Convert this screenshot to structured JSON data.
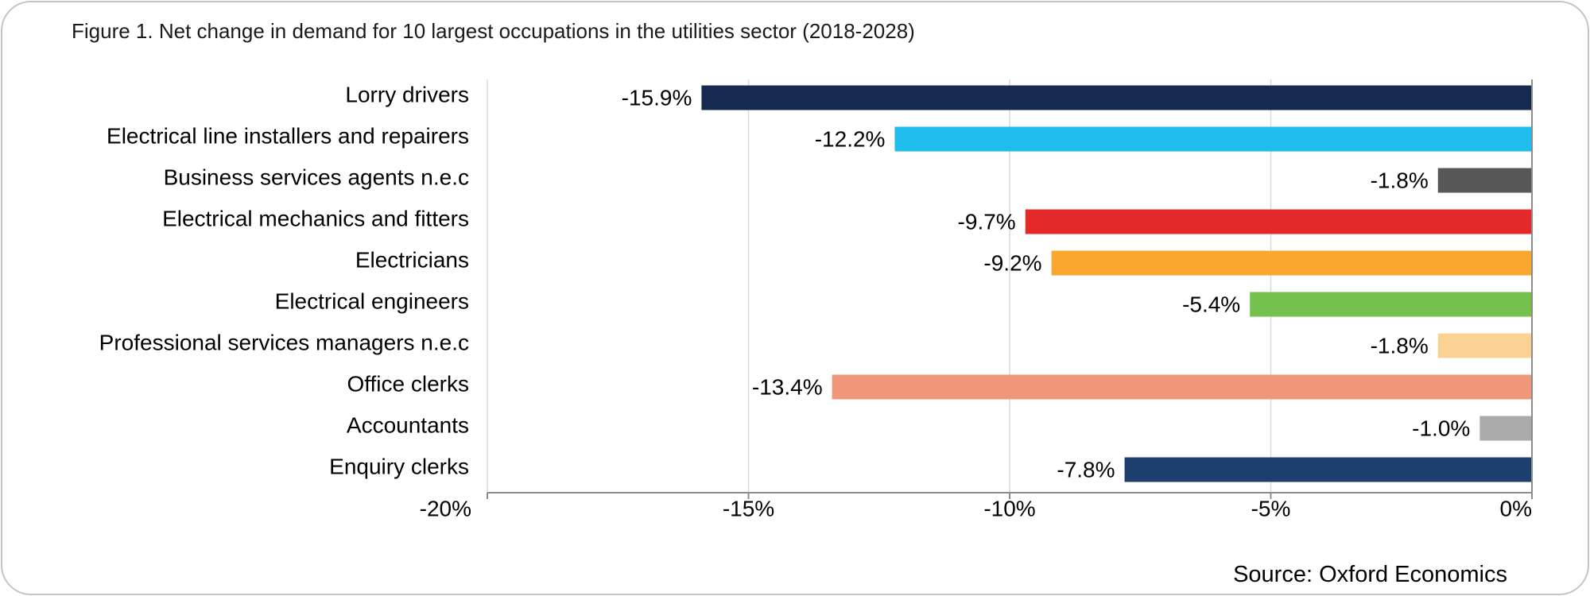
{
  "title": "Figure 1. Net change in demand for 10 largest occupations in the utilities sector (2018-2028)",
  "source": "Source: Oxford Economics",
  "chart_data": {
    "type": "bar",
    "orientation": "horizontal",
    "title": "Figure 1. Net change in demand for 10 largest occupations in the utilities sector (2018-2028)",
    "xlabel": "",
    "ylabel": "",
    "xlim": [
      -20,
      0
    ],
    "xticks": [
      -20,
      -15,
      -10,
      -5,
      0
    ],
    "xtick_labels": [
      "-20%",
      "-15%",
      "-10%",
      "-5%",
      "0%"
    ],
    "grid": "vertical gridlines",
    "legend": "none",
    "categories": [
      "Lorry drivers",
      "Electrical line installers and repairers",
      "Business services agents n.e.c",
      "Electrical mechanics and fitters",
      "Electricians",
      "Electrical engineers",
      "Professional services managers n.e.c",
      "Office clerks",
      "Accountants",
      "Enquiry clerks"
    ],
    "values": [
      -15.9,
      -12.2,
      -1.8,
      -9.7,
      -9.2,
      -5.4,
      -1.8,
      -13.4,
      -1.0,
      -7.8
    ],
    "value_labels": [
      "-15.9%",
      "-12.2%",
      "-1.8%",
      "-9.7%",
      "-9.2%",
      "-5.4%",
      "-1.8%",
      "-13.4%",
      "-1.0%",
      "-7.8%"
    ],
    "colors": [
      "#17294f",
      "#1ebdee",
      "#585858",
      "#e4292a",
      "#f9a72e",
      "#76c04e",
      "#fcd293",
      "#f0967a",
      "#aaaaaa",
      "#1c3f6e"
    ]
  }
}
